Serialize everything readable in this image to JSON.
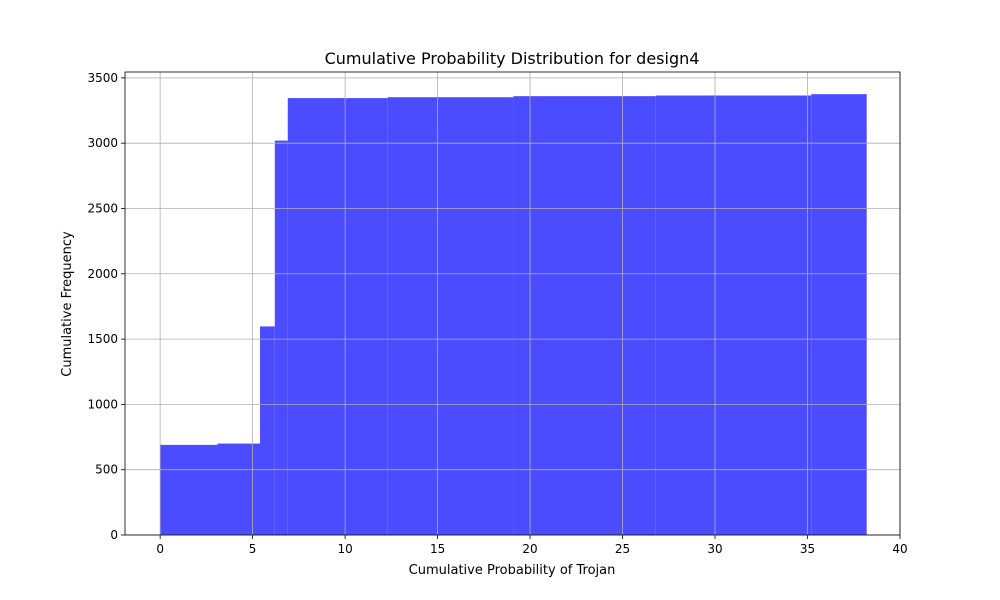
{
  "chart_data": {
    "type": "bar",
    "title": "Cumulative Probability Distribution for design4",
    "xlabel": "Cumulative Probability of Trojan",
    "ylabel": "Cumulative Frequency",
    "xlim": [
      -1.9,
      40.0
    ],
    "ylim": [
      0,
      3545
    ],
    "xticks": [
      0,
      5,
      10,
      15,
      20,
      25,
      30,
      35,
      40
    ],
    "yticks": [
      0,
      500,
      1000,
      1500,
      2000,
      2500,
      3000,
      3500
    ],
    "grid": true,
    "bar_color": "#4b4bff",
    "bins": [
      {
        "x0": 0.0,
        "x1": 3.1,
        "value": 690
      },
      {
        "x0": 3.1,
        "x1": 5.4,
        "value": 700
      },
      {
        "x0": 5.4,
        "x1": 6.2,
        "value": 1597
      },
      {
        "x0": 6.2,
        "x1": 6.9,
        "value": 3020
      },
      {
        "x0": 6.9,
        "x1": 12.3,
        "value": 3345
      },
      {
        "x0": 12.3,
        "x1": 19.1,
        "value": 3352
      },
      {
        "x0": 19.1,
        "x1": 26.8,
        "value": 3360
      },
      {
        "x0": 26.8,
        "x1": 35.2,
        "value": 3365
      },
      {
        "x0": 35.2,
        "x1": 38.2,
        "value": 3375
      }
    ]
  }
}
